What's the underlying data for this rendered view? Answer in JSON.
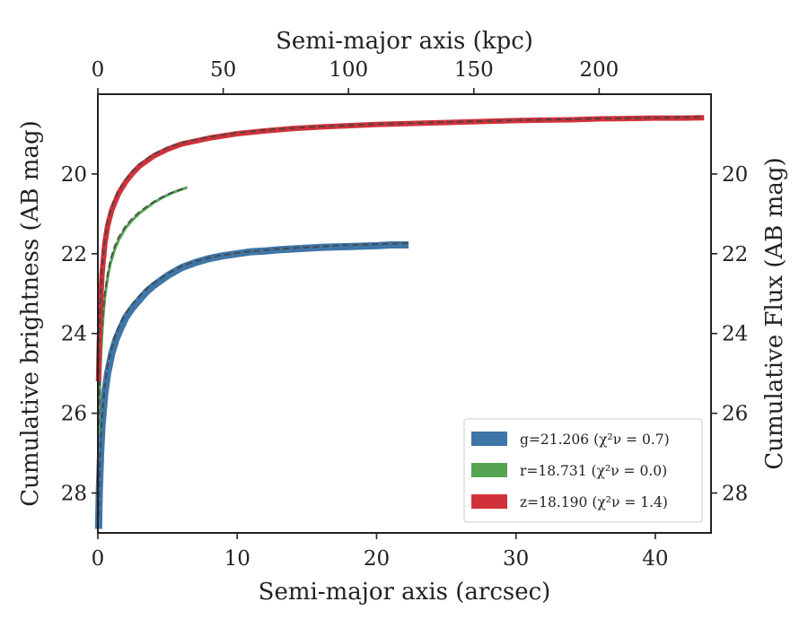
{
  "chart_data": {
    "type": "line",
    "xlabel": "Semi-major axis (arcsec)",
    "x2label": "Semi-major axis (kpc)",
    "ylabel": "Cumulative brightness (AB mag)",
    "y2label": "Cumulative Flux (AB mag)",
    "xlim": [
      0,
      44
    ],
    "ylim": [
      29.0,
      18.0
    ],
    "x_ticks": [
      0,
      10,
      20,
      30,
      40
    ],
    "x_tick_labels": [
      "0",
      "10",
      "20",
      "30",
      "40"
    ],
    "x2_ticks": [
      0,
      50,
      100,
      150,
      200
    ],
    "x2_tick_labels": [
      "0",
      "50",
      "100",
      "150",
      "200"
    ],
    "kpc_per_arcsec": 5.56,
    "y_ticks": [
      20,
      22,
      24,
      26,
      28
    ],
    "y_tick_labels": [
      "20",
      "22",
      "24",
      "26",
      "28"
    ],
    "y2_ticks": [
      20,
      22,
      24,
      26,
      28
    ],
    "y2_tick_labels": [
      "20",
      "22",
      "24",
      "26",
      "28"
    ],
    "legend_position": "bottom-right",
    "grid": false,
    "series": [
      {
        "name": "g",
        "label": "g=21.206",
        "chi2": "(χ²ν = 0.7)",
        "color": "#3f76a8",
        "band_width": 8,
        "x": [
          0.05,
          0.1,
          0.2,
          0.3,
          0.5,
          0.7,
          1.0,
          1.3,
          1.6,
          2.0,
          2.5,
          3.0,
          3.5,
          4.0,
          5.0,
          6.0,
          7.0,
          8.0,
          9.0,
          10.0,
          11.0,
          12.0,
          13.0,
          14.0,
          15.0,
          16.0,
          17.0,
          18.0,
          19.0,
          20.0,
          21.0,
          22.3
        ],
        "y": [
          28.9,
          28.0,
          27.0,
          26.3,
          25.5,
          25.0,
          24.5,
          24.15,
          23.9,
          23.6,
          23.35,
          23.15,
          22.95,
          22.8,
          22.55,
          22.35,
          22.22,
          22.12,
          22.05,
          22.0,
          21.95,
          21.93,
          21.9,
          21.88,
          21.86,
          21.84,
          21.83,
          21.82,
          21.81,
          21.8,
          21.78,
          21.78
        ],
        "model_y": [
          28.6,
          27.7,
          26.8,
          26.1,
          25.3,
          24.8,
          24.35,
          24.0,
          23.75,
          23.5,
          23.25,
          23.05,
          22.88,
          22.74,
          22.5,
          22.32,
          22.19,
          22.1,
          22.03,
          21.98,
          21.94,
          21.91,
          21.88,
          21.86,
          21.84,
          21.82,
          21.8,
          21.78,
          21.77,
          21.76,
          21.75,
          21.74
        ]
      },
      {
        "name": "r",
        "label": "r=18.731",
        "chi2": "(χ²ν = 0.0)",
        "color": "#55a452",
        "band_width": 3,
        "x": [
          0.05,
          0.1,
          0.15,
          0.2,
          0.3,
          0.4,
          0.5,
          0.7,
          0.9,
          1.2,
          1.5,
          2.0,
          2.5,
          3.0,
          3.5,
          4.0,
          4.5,
          5.0,
          5.5,
          6.0,
          6.4
        ],
        "y": [
          26.5,
          25.8,
          25.2,
          24.7,
          24.0,
          23.5,
          23.1,
          22.6,
          22.25,
          21.9,
          21.65,
          21.35,
          21.15,
          20.98,
          20.85,
          20.72,
          20.62,
          20.53,
          20.45,
          20.39,
          20.34
        ],
        "model_y": [
          26.3,
          25.6,
          25.0,
          24.5,
          23.85,
          23.35,
          23.0,
          22.5,
          22.15,
          21.82,
          21.58,
          21.3,
          21.1,
          20.95,
          20.82,
          20.7,
          20.6,
          20.51,
          20.44,
          20.38,
          20.34
        ]
      },
      {
        "name": "z",
        "label": "z=18.190",
        "chi2": "(χ²ν = 1.4)",
        "color": "#d1313a",
        "band_width": 6,
        "x": [
          0.05,
          0.1,
          0.15,
          0.2,
          0.3,
          0.5,
          0.7,
          1.0,
          1.5,
          2.0,
          2.5,
          3.0,
          4.0,
          5.0,
          6.0,
          8.0,
          10.0,
          12.0,
          14.0,
          16.0,
          18.0,
          20.0,
          22.0,
          24.0,
          26.0,
          28.0,
          30.0,
          32.0,
          34.0,
          36.0,
          38.0,
          40.0,
          42.0,
          43.5
        ],
        "y": [
          25.2,
          24.3,
          23.7,
          23.2,
          22.5,
          21.75,
          21.3,
          20.9,
          20.48,
          20.2,
          19.98,
          19.8,
          19.55,
          19.38,
          19.25,
          19.1,
          18.99,
          18.92,
          18.86,
          18.82,
          18.79,
          18.76,
          18.74,
          18.72,
          18.7,
          18.68,
          18.66,
          18.65,
          18.64,
          18.62,
          18.61,
          18.6,
          18.6,
          18.59
        ],
        "model_y": [
          25.0,
          24.1,
          23.5,
          23.05,
          22.4,
          21.65,
          21.2,
          20.82,
          20.4,
          20.13,
          19.92,
          19.75,
          19.5,
          19.34,
          19.22,
          19.07,
          18.97,
          18.9,
          18.85,
          18.81,
          18.78,
          18.75,
          18.73,
          18.71,
          18.69,
          18.67,
          18.65,
          18.64,
          18.63,
          18.61,
          18.6,
          18.59,
          18.58,
          18.57
        ]
      }
    ]
  }
}
